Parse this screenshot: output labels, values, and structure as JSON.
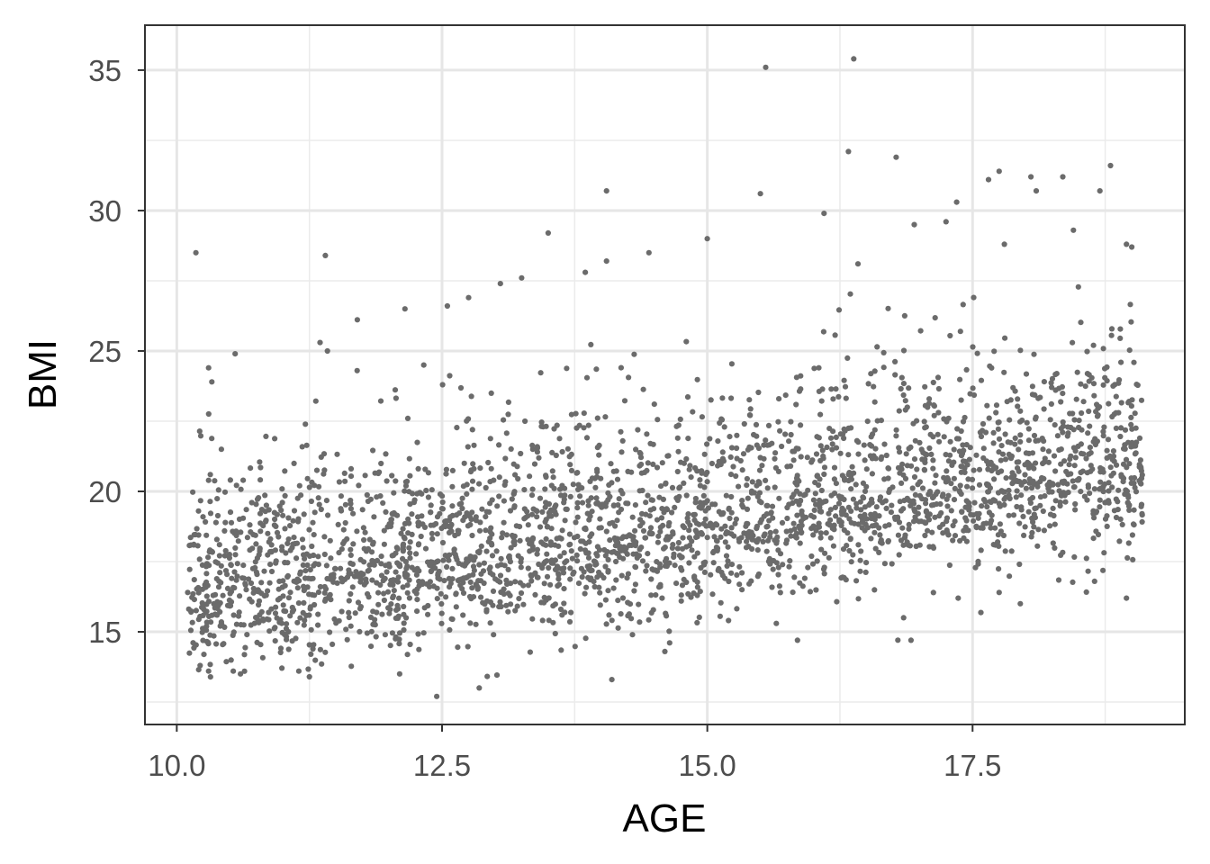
{
  "chart_data": {
    "type": "scatter",
    "title": "",
    "xlabel": "AGE",
    "ylabel": "BMI",
    "xlim": [
      9.7,
      19.5
    ],
    "ylim": [
      11.7,
      36.6
    ],
    "x_ticks": [
      {
        "value": 10.0,
        "label": "10.0"
      },
      {
        "value": 12.5,
        "label": "12.5"
      },
      {
        "value": 15.0,
        "label": "15.0"
      },
      {
        "value": 17.5,
        "label": "17.5"
      }
    ],
    "y_ticks": [
      {
        "value": 15,
        "label": "15"
      },
      {
        "value": 20,
        "label": "20"
      },
      {
        "value": 25,
        "label": "25"
      },
      {
        "value": 30,
        "label": "30"
      },
      {
        "value": 35,
        "label": "35"
      }
    ],
    "x_minor_breaks": [
      11.25,
      13.75,
      16.25,
      18.75
    ],
    "y_minor_breaks": [
      12.5,
      17.5,
      22.5,
      27.5,
      32.5
    ],
    "grid": true,
    "legend": "none",
    "point_color": "#6b6b6b",
    "point_count_approx": 3000,
    "trend": "BMI increases roughly linearly with AGE, from about 16.5 at age 10 to about 21 at age 19; residual spread about 1.8 BMI units, right-skewed toward higher BMI",
    "series": [
      {
        "values": [
          [
            10.18,
            28.5
          ],
          [
            11.4,
            28.4
          ],
          [
            11.35,
            25.3
          ],
          [
            11.42,
            25.0
          ],
          [
            10.3,
            24.4
          ],
          [
            10.33,
            23.9
          ],
          [
            10.42,
            21.5
          ],
          [
            10.55,
            24.9
          ],
          [
            10.22,
            13.8
          ],
          [
            10.3,
            13.6
          ],
          [
            11.15,
            13.6
          ],
          [
            11.25,
            13.4
          ],
          [
            12.1,
            13.5
          ],
          [
            12.45,
            12.7
          ],
          [
            12.85,
            13.0
          ],
          [
            12.15,
            26.5
          ],
          [
            12.55,
            26.6
          ],
          [
            12.75,
            26.9
          ],
          [
            13.05,
            27.4
          ],
          [
            13.25,
            27.6
          ],
          [
            13.5,
            29.2
          ],
          [
            13.85,
            27.8
          ],
          [
            14.05,
            28.2
          ],
          [
            14.05,
            30.7
          ],
          [
            14.45,
            28.5
          ],
          [
            14.1,
            13.3
          ],
          [
            14.6,
            14.3
          ],
          [
            15.0,
            29.0
          ],
          [
            15.55,
            35.1
          ],
          [
            15.5,
            30.6
          ],
          [
            15.2,
            15.4
          ],
          [
            15.65,
            15.3
          ],
          [
            15.85,
            14.7
          ],
          [
            16.1,
            29.9
          ],
          [
            16.33,
            32.1
          ],
          [
            16.38,
            35.4
          ],
          [
            16.42,
            28.1
          ],
          [
            16.78,
            31.9
          ],
          [
            16.95,
            29.5
          ],
          [
            17.25,
            29.6
          ],
          [
            17.35,
            30.3
          ],
          [
            17.65,
            31.1
          ],
          [
            17.75,
            31.4
          ],
          [
            18.05,
            31.2
          ],
          [
            18.1,
            30.7
          ],
          [
            18.35,
            31.2
          ],
          [
            18.7,
            30.7
          ],
          [
            18.8,
            31.6
          ],
          [
            18.95,
            28.8
          ],
          [
            19.0,
            28.7
          ],
          [
            16.85,
            15.5
          ],
          [
            16.92,
            14.7
          ],
          [
            17.75,
            16.4
          ],
          [
            17.95,
            16.0
          ],
          [
            18.65,
            16.8
          ],
          [
            18.95,
            16.2
          ],
          [
            17.8,
            28.8
          ],
          [
            18.45,
            29.3
          ],
          [
            10.6,
            13.5
          ],
          [
            11.7,
            24.3
          ]
        ]
      }
    ]
  }
}
